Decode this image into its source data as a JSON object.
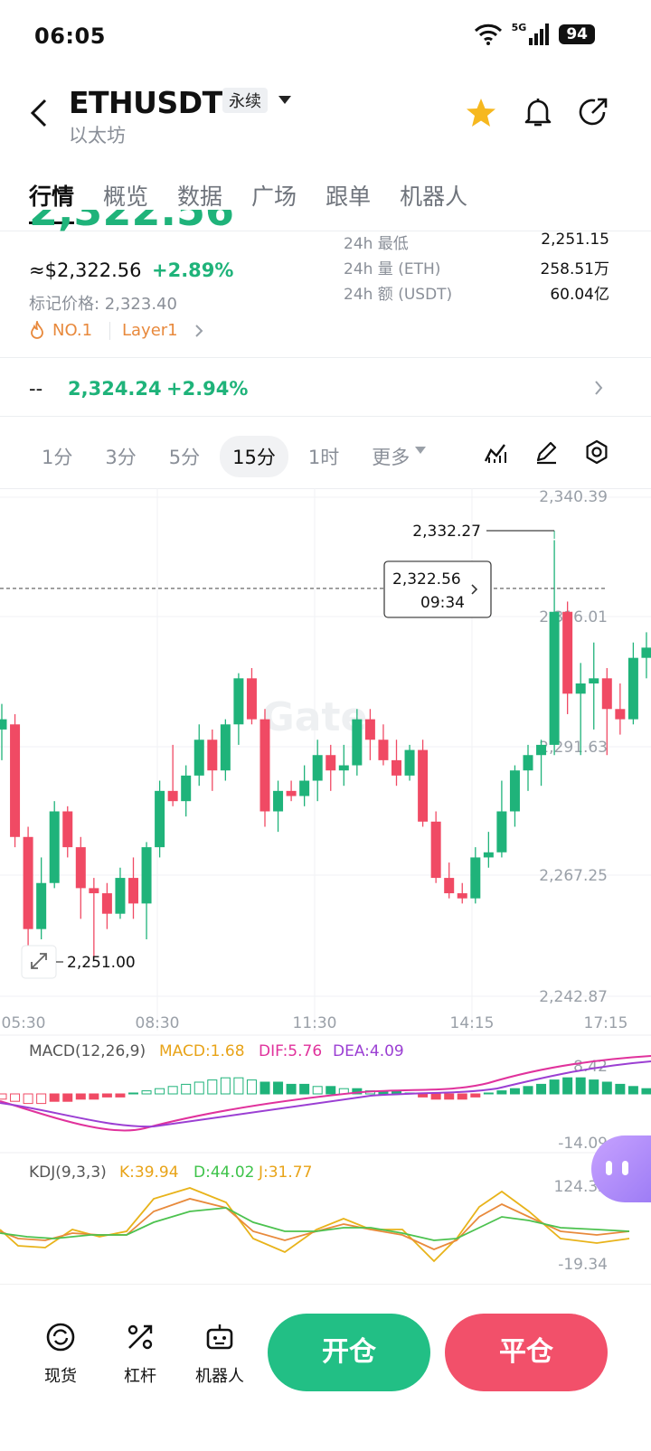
{
  "status": {
    "time": "06:05",
    "network": "5G",
    "battery": "94"
  },
  "header": {
    "symbol": "ETHUSDT",
    "type_tag": "永续",
    "name": "以太坊"
  },
  "tabs": [
    {
      "label": "行情",
      "active": true
    },
    {
      "label": "概览"
    },
    {
      "label": "数据"
    },
    {
      "label": "广场"
    },
    {
      "label": "跟单"
    },
    {
      "label": "机器人"
    }
  ],
  "price": {
    "last": "2,322.56",
    "usd_value": "≈$2,322.56",
    "change_pct": "+2.89%",
    "mark_label": "标记价格: 2,323.40",
    "rank": "NO.1",
    "sector": "Layer1",
    "index_prefix": "--",
    "index_price": "2,324.24",
    "index_change": "+2.94%"
  },
  "stats": [
    {
      "label": "24h  最低",
      "value": "2,251.15"
    },
    {
      "label": "24h  量 (ETH)",
      "value": "258.51万"
    },
    {
      "label": "24h  额 (USDT)",
      "value": "60.04亿"
    }
  ],
  "intervals": [
    {
      "label": "1分"
    },
    {
      "label": "3分"
    },
    {
      "label": "5分"
    },
    {
      "label": "15分",
      "active": true
    },
    {
      "label": "1时"
    },
    {
      "label": "更多"
    }
  ],
  "chart_data": {
    "type": "candlestick",
    "price_axis": [
      "2,340.39",
      "2,316.01",
      "2,291.63",
      "2,267.25",
      "2,242.87"
    ],
    "time_axis": [
      "05:30",
      "08:30",
      "11:30",
      "14:15",
      "17:15"
    ],
    "watermark": "Gate",
    "high_label": "2,332.27",
    "low_label": "2,251.00",
    "current_price": "2,322.56",
    "current_time": "09:34",
    "candles": [
      [
        2295,
        2300,
        2289,
        2297
      ],
      [
        2296,
        2298,
        2272,
        2274
      ],
      [
        2274,
        2276,
        2250,
        2256
      ],
      [
        2256,
        2270,
        2254,
        2265
      ],
      [
        2265,
        2281,
        2264,
        2279
      ],
      [
        2279,
        2280,
        2270,
        2272
      ],
      [
        2272,
        2274,
        2258,
        2264
      ],
      [
        2264,
        2266,
        2250,
        2263
      ],
      [
        2263,
        2265,
        2256,
        2259
      ],
      [
        2259,
        2268,
        2258,
        2266
      ],
      [
        2266,
        2270,
        2258,
        2261
      ],
      [
        2261,
        2273,
        2254,
        2272
      ],
      [
        2272,
        2285,
        2270,
        2283
      ],
      [
        2283,
        2292,
        2280,
        2281
      ],
      [
        2281,
        2288,
        2278,
        2286
      ],
      [
        2286,
        2296,
        2284,
        2293
      ],
      [
        2293,
        2295,
        2283,
        2287
      ],
      [
        2287,
        2297,
        2285,
        2296
      ],
      [
        2296,
        2306,
        2292,
        2305
      ],
      [
        2305,
        2307,
        2296,
        2297
      ],
      [
        2297,
        2299,
        2276,
        2279
      ],
      [
        2279,
        2285,
        2275,
        2283
      ],
      [
        2283,
        2285,
        2281,
        2282
      ],
      [
        2282,
        2288,
        2280,
        2285
      ],
      [
        2285,
        2293,
        2281,
        2290
      ],
      [
        2290,
        2292,
        2283,
        2287
      ],
      [
        2287,
        2292,
        2284,
        2288
      ],
      [
        2288,
        2299,
        2286,
        2297
      ],
      [
        2297,
        2299,
        2289,
        2293
      ],
      [
        2293,
        2296,
        2288,
        2289
      ],
      [
        2289,
        2293,
        2284,
        2286
      ],
      [
        2286,
        2292,
        2285,
        2291
      ],
      [
        2291,
        2293,
        2276,
        2277
      ],
      [
        2277,
        2279,
        2265,
        2266
      ],
      [
        2266,
        2269,
        2262,
        2263
      ],
      [
        2263,
        2265,
        2261,
        2262
      ],
      [
        2262,
        2272,
        2261,
        2270
      ],
      [
        2270,
        2275,
        2268,
        2271
      ],
      [
        2271,
        2285,
        2270,
        2279
      ],
      [
        2279,
        2288,
        2276,
        2287
      ],
      [
        2287,
        2292,
        2283,
        2290
      ],
      [
        2290,
        2293,
        2284,
        2292
      ],
      [
        2292,
        2332,
        2290,
        2318
      ],
      [
        2318,
        2320,
        2298,
        2302
      ],
      [
        2302,
        2308,
        2290,
        2304
      ],
      [
        2304,
        2312,
        2295,
        2305
      ],
      [
        2305,
        2307,
        2290,
        2299
      ],
      [
        2299,
        2304,
        2294,
        2297
      ],
      [
        2297,
        2312,
        2296,
        2309
      ],
      [
        2309,
        2314,
        2305,
        2311
      ]
    ],
    "macd": {
      "label": "MACD(12,26,9)",
      "macd": "MACD:1.68",
      "dif": "DIF:5.76",
      "dea": "DEA:4.09",
      "axis_top": "8.42",
      "axis_bottom": "-14.09"
    },
    "kdj": {
      "label": "KDJ(9,3,3)",
      "k": "K:39.94",
      "d": "D:44.02",
      "j": "J:31.77",
      "axis_top": "124.32",
      "axis_bottom": "-19.34"
    }
  },
  "bottom": {
    "spot": "现货",
    "leverage": "杠杆",
    "bot": "机器人",
    "open": "开仓",
    "close": "平仓"
  },
  "colors": {
    "up": "#1fb37a",
    "down": "#f04a64",
    "accent_star": "#f6b81f"
  }
}
